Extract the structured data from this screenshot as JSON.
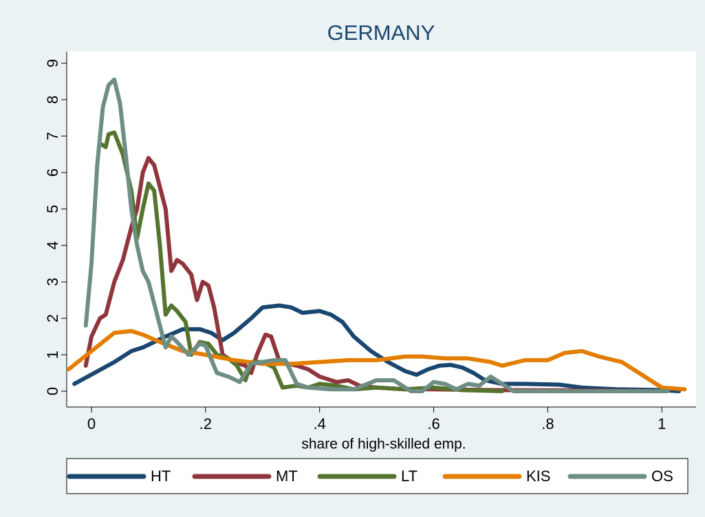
{
  "chart_data": {
    "type": "line",
    "title": "GERMANY",
    "x_label": "share of high-skilled emp.",
    "xlim": [
      -0.0434,
      1.06
    ],
    "ylim": [
      -0.434,
      9.32
    ],
    "xticks": [
      0,
      {
        "value": 0.2,
        "label": ".2"
      },
      {
        "value": 0.4,
        "label": ".4"
      },
      {
        "value": 0.6,
        "label": ".6"
      },
      {
        "value": 0.8,
        "label": ".8"
      },
      1
    ],
    "yticks": [
      0,
      1,
      2,
      3,
      4,
      5,
      6,
      7,
      8,
      9
    ],
    "grid": false,
    "legend": "bottom",
    "series": [
      {
        "name": "HT",
        "color": "#1a476f",
        "x": [
          -0.03,
          0.04,
          0.07,
          0.09,
          0.13,
          0.16,
          0.19,
          0.21,
          0.23,
          0.25,
          0.28,
          0.3,
          0.33,
          0.35,
          0.37,
          0.4,
          0.42,
          0.44,
          0.46,
          0.49,
          0.52,
          0.55,
          0.57,
          0.59,
          0.61,
          0.63,
          0.65,
          0.67,
          0.69,
          0.72,
          0.76,
          0.82,
          0.86,
          0.92,
          1.0,
          1.03
        ],
        "values": [
          0.2,
          0.8,
          1.1,
          1.2,
          1.5,
          1.7,
          1.7,
          1.6,
          1.4,
          1.6,
          2.0,
          2.3,
          2.35,
          2.3,
          2.15,
          2.2,
          2.1,
          1.9,
          1.5,
          1.1,
          0.8,
          0.55,
          0.45,
          0.6,
          0.7,
          0.72,
          0.65,
          0.5,
          0.3,
          0.2,
          0.2,
          0.18,
          0.1,
          0.05,
          0.03,
          0.0
        ]
      },
      {
        "name": "MT",
        "color": "#90353b",
        "x": [
          -0.01,
          0.0,
          0.015,
          0.025,
          0.04,
          0.055,
          0.07,
          0.08,
          0.09,
          0.1,
          0.11,
          0.13,
          0.14,
          0.15,
          0.16,
          0.175,
          0.185,
          0.195,
          0.205,
          0.215,
          0.23,
          0.25,
          0.27,
          0.28,
          0.29,
          0.305,
          0.315,
          0.33,
          0.36,
          0.38,
          0.4,
          0.43,
          0.45,
          0.47,
          0.5,
          0.55,
          0.6,
          0.7,
          0.85,
          1.0
        ],
        "values": [
          0.7,
          1.5,
          2.0,
          2.1,
          3.0,
          3.6,
          4.5,
          5.0,
          6.0,
          6.4,
          6.2,
          5.0,
          3.3,
          3.6,
          3.5,
          3.2,
          2.5,
          3.0,
          2.9,
          2.3,
          1.0,
          0.8,
          0.7,
          0.5,
          1.0,
          1.55,
          1.5,
          0.8,
          0.7,
          0.6,
          0.4,
          0.25,
          0.3,
          0.15,
          0.1,
          0.05,
          0.05,
          0.03,
          0.02,
          0.0
        ]
      },
      {
        "name": "LT",
        "color": "#55752f",
        "x": [
          0.015,
          0.025,
          0.03,
          0.04,
          0.055,
          0.07,
          0.08,
          0.09,
          0.1,
          0.11,
          0.12,
          0.13,
          0.14,
          0.15,
          0.165,
          0.175,
          0.19,
          0.205,
          0.22,
          0.24,
          0.255,
          0.27,
          0.28,
          0.3,
          0.32,
          0.335,
          0.36,
          0.38,
          0.4,
          0.43,
          0.46,
          0.5,
          0.55,
          0.6,
          0.65,
          0.72
        ],
        "values": [
          6.8,
          6.7,
          7.05,
          7.1,
          6.5,
          5.5,
          4.2,
          5.0,
          5.7,
          5.5,
          4.0,
          2.1,
          2.35,
          2.2,
          1.9,
          1.0,
          1.35,
          1.3,
          1.0,
          0.9,
          0.7,
          0.3,
          0.8,
          0.8,
          0.65,
          0.1,
          0.15,
          0.1,
          0.2,
          0.15,
          0.05,
          0.1,
          0.05,
          0.1,
          0.03,
          0.0
        ]
      },
      {
        "name": "KIS",
        "color": "#e37e00",
        "x": [
          -0.04,
          0.0,
          0.04,
          0.07,
          0.09,
          0.12,
          0.16,
          0.2,
          0.25,
          0.3,
          0.35,
          0.4,
          0.45,
          0.5,
          0.55,
          0.58,
          0.62,
          0.66,
          0.7,
          0.72,
          0.76,
          0.8,
          0.83,
          0.86,
          0.89,
          0.93,
          0.97,
          1.0,
          1.04
        ],
        "values": [
          0.6,
          1.1,
          1.6,
          1.65,
          1.55,
          1.35,
          1.1,
          1.0,
          0.85,
          0.75,
          0.75,
          0.8,
          0.85,
          0.85,
          0.95,
          0.95,
          0.9,
          0.9,
          0.8,
          0.7,
          0.85,
          0.85,
          1.05,
          1.1,
          0.95,
          0.8,
          0.4,
          0.1,
          0.05
        ]
      },
      {
        "name": "OS",
        "color": "#6e8e84",
        "x": [
          -0.01,
          0.0,
          0.01,
          0.02,
          0.03,
          0.04,
          0.05,
          0.06,
          0.07,
          0.08,
          0.09,
          0.1,
          0.11,
          0.12,
          0.13,
          0.14,
          0.15,
          0.17,
          0.19,
          0.2,
          0.22,
          0.24,
          0.26,
          0.28,
          0.3,
          0.32,
          0.34,
          0.36,
          0.38,
          0.42,
          0.46,
          0.5,
          0.53,
          0.56,
          0.58,
          0.6,
          0.62,
          0.64,
          0.66,
          0.68,
          0.7,
          0.72,
          0.74,
          0.8,
          1.01
        ],
        "values": [
          1.8,
          3.5,
          6.2,
          7.8,
          8.4,
          8.55,
          7.9,
          6.5,
          5.0,
          4.0,
          3.3,
          3.0,
          2.4,
          1.8,
          1.2,
          1.5,
          1.35,
          1.0,
          1.3,
          1.25,
          0.5,
          0.4,
          0.25,
          0.75,
          0.8,
          0.85,
          0.85,
          0.2,
          0.1,
          0.05,
          0.05,
          0.3,
          0.3,
          0.0,
          0.0,
          0.25,
          0.2,
          0.05,
          0.2,
          0.15,
          0.4,
          0.2,
          0.0,
          0.0,
          0.0
        ]
      }
    ]
  }
}
